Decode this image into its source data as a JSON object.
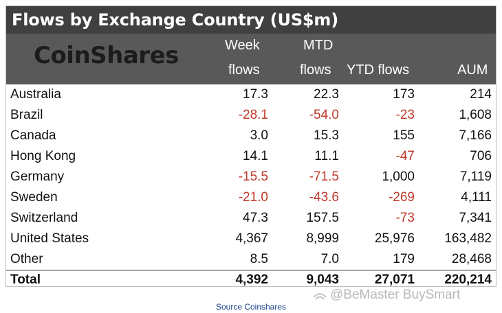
{
  "title": "Flows by Exchange Country (US$m)",
  "logo": "CoinShares",
  "headers": {
    "week_top": "Week",
    "week_bottom": "flows",
    "mtd_top": "MTD",
    "mtd_bottom": "flows",
    "ytd": "YTD flows",
    "aum": "AUM"
  },
  "rows": [
    {
      "country": "Australia",
      "week": "17.3",
      "mtd": "22.3",
      "ytd": "173",
      "aum": "214"
    },
    {
      "country": "Brazil",
      "week": "-28.1",
      "mtd": "-54.0",
      "ytd": "-23",
      "aum": "1,608"
    },
    {
      "country": "Canada",
      "week": "3.0",
      "mtd": "15.3",
      "ytd": "155",
      "aum": "7,166"
    },
    {
      "country": "Hong Kong",
      "week": "14.1",
      "mtd": "11.1",
      "ytd": "-47",
      "aum": "706"
    },
    {
      "country": "Germany",
      "week": "-15.5",
      "mtd": "-71.5",
      "ytd": "1,000",
      "aum": "7,119"
    },
    {
      "country": "Sweden",
      "week": "-21.0",
      "mtd": "-43.6",
      "ytd": "-269",
      "aum": "4,111"
    },
    {
      "country": "Switzerland",
      "week": "47.3",
      "mtd": "157.5",
      "ytd": "-73",
      "aum": "7,341"
    },
    {
      "country": "United States",
      "week": "4,367",
      "mtd": "8,999",
      "ytd": "25,976",
      "aum": "163,482"
    },
    {
      "country": "Other",
      "week": "8.5",
      "mtd": "7.0",
      "ytd": "179",
      "aum": "28,468"
    }
  ],
  "total": {
    "country": "Total",
    "week": "4,392",
    "mtd": "9,043",
    "ytd": "27,071",
    "aum": "220,214"
  },
  "source": "Source Coinshares",
  "watermark": "@BeMaster BuySmart",
  "colors": {
    "title_bg": "#404040",
    "header_bg": "#595959",
    "negative": "#c0392b"
  }
}
